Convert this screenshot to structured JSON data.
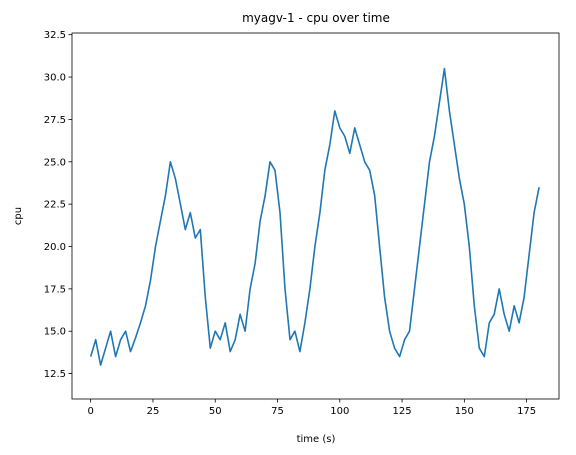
{
  "chart_data": {
    "type": "line",
    "title": "myagv-1 - cpu over time",
    "xlabel": "time (s)",
    "ylabel": "cpu",
    "xlim": [
      -7.5,
      188.0
    ],
    "ylim": [
      11.0,
      32.6
    ],
    "xticks": [
      0,
      25,
      50,
      75,
      100,
      125,
      150,
      175
    ],
    "yticks": [
      12.5,
      15.0,
      17.5,
      20.0,
      22.5,
      25.0,
      27.5,
      30.0,
      32.5
    ],
    "grid": false,
    "legend": "none",
    "color": "#1f77b4",
    "series": [
      {
        "x": [
          0,
          2,
          4,
          6,
          8,
          10,
          12,
          14,
          16,
          18,
          20,
          22,
          24,
          26,
          28,
          30,
          32,
          34,
          36,
          38,
          40,
          42,
          44,
          46,
          48,
          50,
          52,
          54,
          56,
          58,
          60,
          62,
          64,
          66,
          68,
          70,
          72,
          74,
          76,
          78,
          80,
          82,
          84,
          86,
          88,
          90,
          92,
          94,
          96,
          98,
          100,
          102,
          104,
          106,
          108,
          110,
          112,
          114,
          116,
          118,
          120,
          122,
          124,
          126,
          128,
          130,
          132,
          134,
          136,
          138,
          140,
          142,
          144,
          146,
          148,
          150,
          152,
          154,
          156,
          158,
          160,
          162,
          164,
          166,
          168,
          170,
          172,
          174,
          176,
          178,
          180
        ],
        "y": [
          13.5,
          14.5,
          13.0,
          14.0,
          15.0,
          13.5,
          14.5,
          15.0,
          13.8,
          14.6,
          15.5,
          16.5,
          18.0,
          20.0,
          21.5,
          23.0,
          25.0,
          24.0,
          22.5,
          21.0,
          22.0,
          20.5,
          21.0,
          17.0,
          14.0,
          15.0,
          14.5,
          15.5,
          13.8,
          14.5,
          16.0,
          15.0,
          17.5,
          19.0,
          21.5,
          23.0,
          25.0,
          24.5,
          22.0,
          17.5,
          14.5,
          15.0,
          13.8,
          15.5,
          17.5,
          20.0,
          22.0,
          24.5,
          26.0,
          28.0,
          27.0,
          26.5,
          25.5,
          27.0,
          26.0,
          25.0,
          24.5,
          23.0,
          20.0,
          17.0,
          15.0,
          14.0,
          13.5,
          14.5,
          15.0,
          17.5,
          20.0,
          22.5,
          25.0,
          26.5,
          28.5,
          30.5,
          28.0,
          26.0,
          24.0,
          22.5,
          20.0,
          16.5,
          14.0,
          13.5,
          15.5,
          16.0,
          17.5,
          16.0,
          15.0,
          16.5,
          15.5,
          17.0,
          19.5,
          22.0,
          23.5
        ]
      }
    ]
  }
}
